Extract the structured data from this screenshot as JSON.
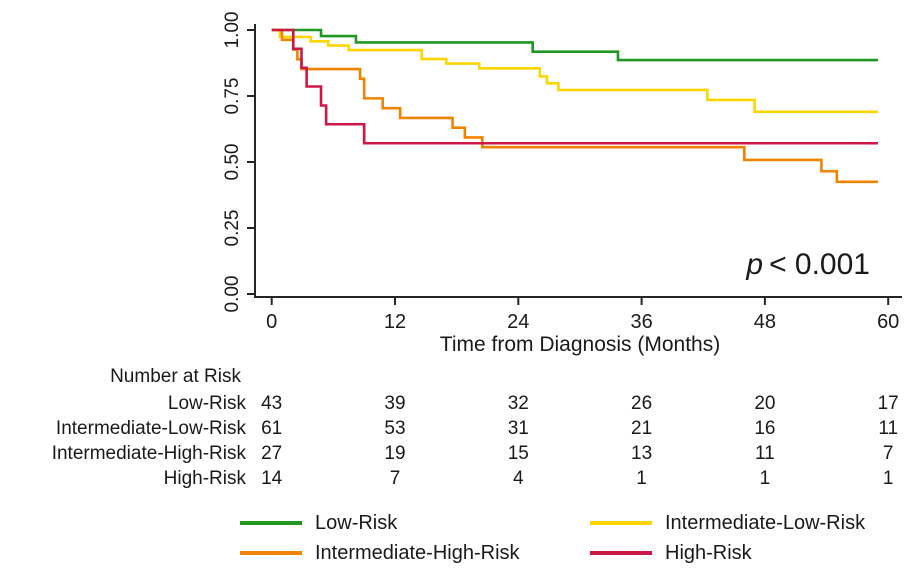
{
  "figure": {
    "p_value": {
      "italic": "p",
      "rest": "< 0.001"
    },
    "axis_title": "Time from Diagnosis (Months)",
    "risk_table": {
      "header": "Number at Risk",
      "times": [
        0,
        12,
        24,
        36,
        48,
        60
      ],
      "rows": [
        {
          "label": "Low-Risk",
          "counts": [
            "43",
            "39",
            "32",
            "26",
            "20",
            "17"
          ]
        },
        {
          "label": "Intermediate-Low-Risk",
          "counts": [
            "61",
            "53",
            "31",
            "21",
            "16",
            "11"
          ]
        },
        {
          "label": "Intermediate-High-Risk",
          "counts": [
            "27",
            "19",
            "15",
            "13",
            "11",
            "7"
          ]
        },
        {
          "label": "High-Risk",
          "counts": [
            "14",
            "7",
            "4",
            "1",
            "1",
            "1"
          ]
        }
      ]
    }
  },
  "chart_data": {
    "type": "line",
    "subtype": "kaplan-meier-step",
    "title": "",
    "xlabel": "Time from Diagnosis (Months)",
    "ylabel": "",
    "xlim": [
      0,
      60
    ],
    "ylim": [
      0,
      1
    ],
    "x_end": 59,
    "xticks": [
      0,
      12,
      24,
      36,
      48,
      60
    ],
    "ytick_labels": [
      "1.00",
      "0.75",
      "0.50",
      "0.25",
      "0.00"
    ],
    "ytick_values": [
      1.0,
      0.75,
      0.5,
      0.25,
      0.0
    ],
    "grid": false,
    "legend_position": "bottom",
    "annotation": "p < 0.001",
    "axis_color": "#262626",
    "series": [
      {
        "name": "Low-Risk",
        "color": "#1f9722",
        "steps": [
          [
            0,
            1.0
          ],
          [
            4.8,
            0.977
          ],
          [
            8.2,
            0.953
          ],
          [
            25.4,
            0.918
          ],
          [
            33.7,
            0.886
          ]
        ]
      },
      {
        "name": "Intermediate-Low-Risk",
        "color": "#ffd500",
        "steps": [
          [
            0,
            1.0
          ],
          [
            0.8,
            0.974
          ],
          [
            3.8,
            0.957
          ],
          [
            5.5,
            0.941
          ],
          [
            7.5,
            0.924
          ],
          [
            14.6,
            0.89
          ],
          [
            17.0,
            0.873
          ],
          [
            20.2,
            0.855
          ],
          [
            26.1,
            0.824
          ],
          [
            26.8,
            0.798
          ],
          [
            27.9,
            0.773
          ],
          [
            42.4,
            0.735
          ],
          [
            47.0,
            0.69
          ]
        ]
      },
      {
        "name": "Intermediate-High-Risk",
        "color": "#f08300",
        "steps": [
          [
            0,
            1.0
          ],
          [
            1.0,
            0.963
          ],
          [
            2.1,
            0.926
          ],
          [
            2.5,
            0.889
          ],
          [
            2.9,
            0.852
          ],
          [
            8.6,
            0.815
          ],
          [
            9.0,
            0.741
          ],
          [
            10.8,
            0.704
          ],
          [
            12.5,
            0.667
          ],
          [
            17.6,
            0.63
          ],
          [
            18.8,
            0.593
          ],
          [
            20.5,
            0.556
          ],
          [
            46.0,
            0.508
          ],
          [
            53.5,
            0.465
          ],
          [
            55.0,
            0.425
          ]
        ]
      },
      {
        "name": "High-Risk",
        "color": "#cc1747",
        "steps": [
          [
            0,
            1.0
          ],
          [
            2.1,
            0.929
          ],
          [
            2.9,
            0.857
          ],
          [
            3.4,
            0.786
          ],
          [
            4.8,
            0.714
          ],
          [
            5.3,
            0.643
          ],
          [
            9.0,
            0.571
          ]
        ]
      }
    ]
  }
}
